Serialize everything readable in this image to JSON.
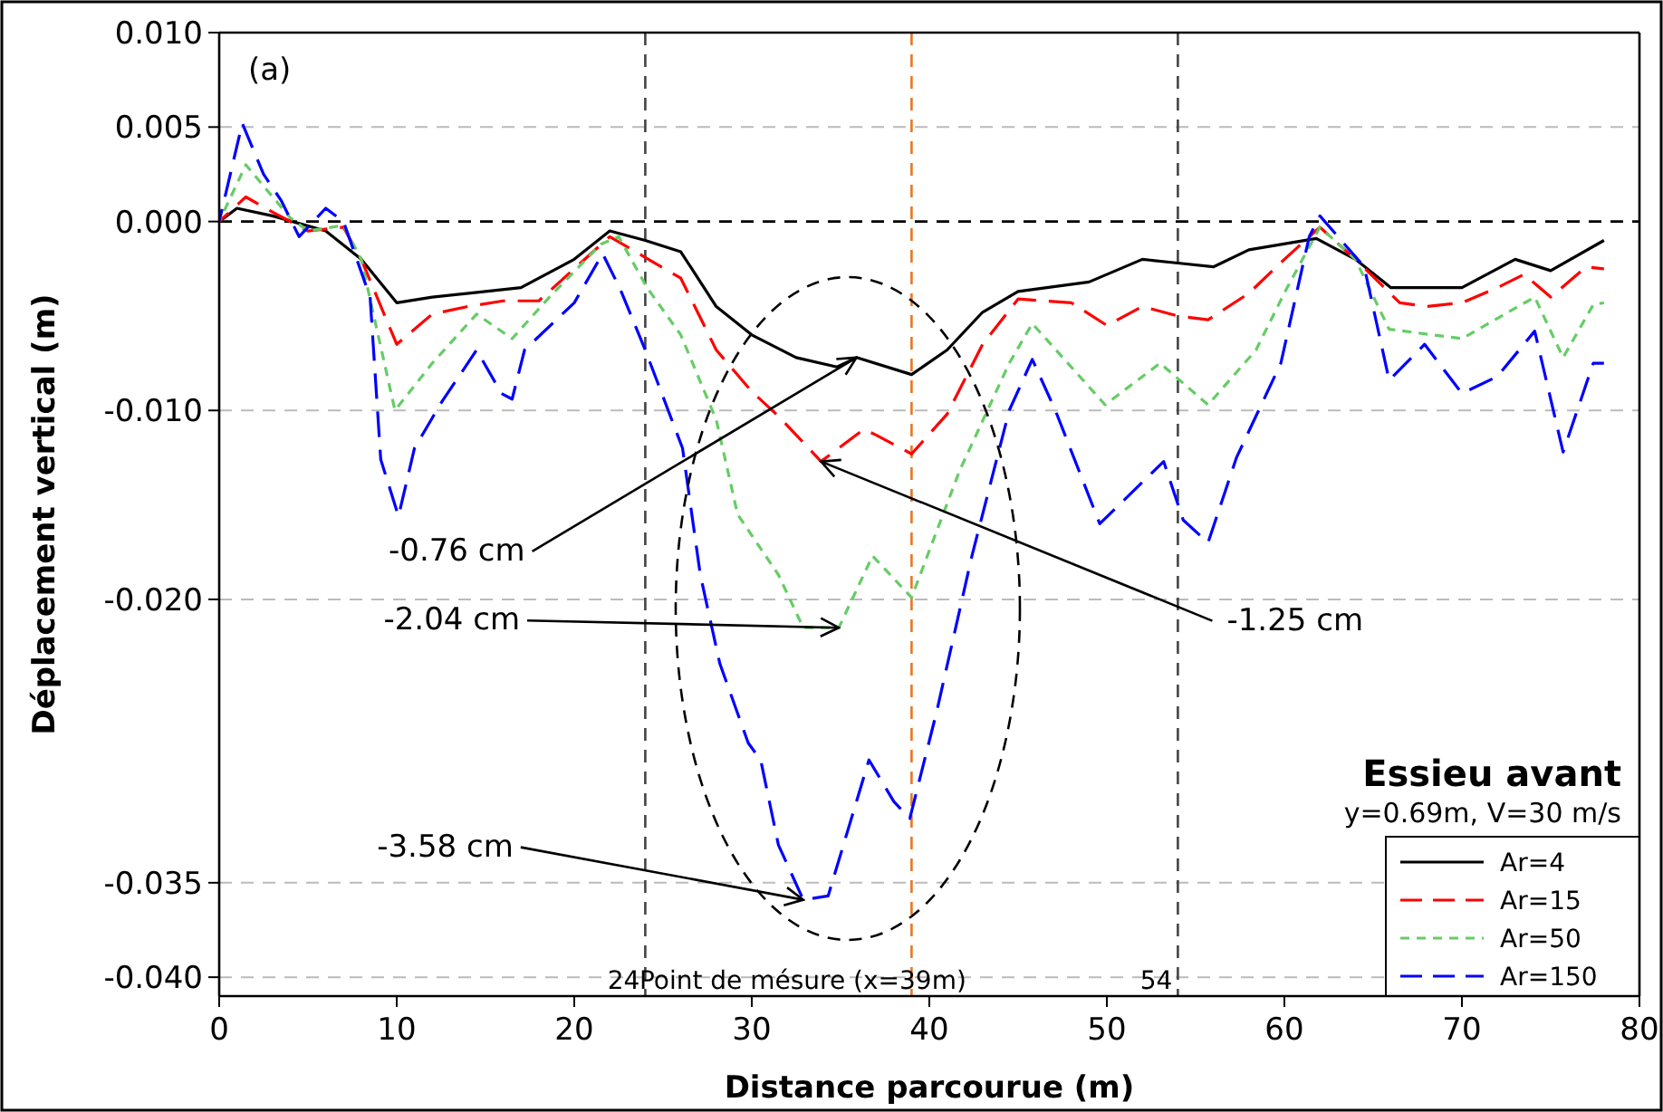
{
  "chart_data": {
    "type": "line",
    "title": "Essieu avant",
    "subtitle": "y=0.69m, V=30 m/s",
    "xlabel": "Distance parcourue (m)",
    "ylabel": "Déplacement vertical (m)",
    "xlim": [
      0,
      80
    ],
    "ylim": [
      -0.041,
      0.01
    ],
    "xticks": [
      0,
      10,
      20,
      30,
      40,
      50,
      60,
      70,
      80
    ],
    "yticks": [
      {
        "value": -0.04,
        "label": "-0.040"
      },
      {
        "value": -0.035,
        "label": "-0.035"
      },
      {
        "value": -0.02,
        "label": "-0.020"
      },
      {
        "value": -0.01,
        "label": "-0.010"
      },
      {
        "value": 0,
        "label": "0.000"
      },
      {
        "value": 0.005,
        "label": "0.005"
      },
      {
        "value": 0.01,
        "label": "0.010"
      }
    ],
    "grid": "y",
    "legend": "bottom right",
    "series": [
      {
        "name": "Ar=4",
        "color": "#000000",
        "line_style": "solid",
        "x": [
          0,
          1,
          3,
          6,
          8,
          10,
          12,
          15,
          17,
          20,
          22,
          24,
          26,
          28,
          30,
          32.5,
          34.8,
          35.9,
          39,
          41,
          43,
          45,
          49,
          52,
          54,
          56,
          58,
          61.8,
          64,
          66,
          70,
          73,
          75,
          78
        ],
        "values": [
          0,
          0.0007,
          0.0003,
          -0.0005,
          -0.002,
          -0.0043,
          -0.004,
          -0.0037,
          -0.0035,
          -0.002,
          -0.0005,
          -0.001,
          -0.0016,
          -0.0045,
          -0.006,
          -0.0072,
          -0.0077,
          -0.0072,
          -0.0081,
          -0.0068,
          -0.0048,
          -0.0037,
          -0.0032,
          -0.002,
          -0.0022,
          -0.0024,
          -0.0015,
          -0.0009,
          -0.002,
          -0.0035,
          -0.0035,
          -0.002,
          -0.0026,
          -0.001
        ]
      },
      {
        "name": "Ar=15",
        "color": "#ff0000",
        "line_style": "dashed",
        "x": [
          0,
          1.5,
          3,
          5,
          7,
          8,
          10,
          12,
          14,
          16,
          18,
          20,
          22,
          24,
          26,
          28,
          30,
          31.5,
          33.9,
          36.3,
          37,
          39,
          41,
          43,
          45,
          48,
          50,
          52,
          54,
          55.7,
          58,
          60,
          62,
          64,
          66.5,
          68,
          70,
          72,
          73.5,
          75,
          77,
          78
        ],
        "values": [
          0,
          0.0013,
          0.0005,
          -0.0005,
          -0.0003,
          -0.002,
          -0.0065,
          -0.0049,
          -0.0045,
          -0.0042,
          -0.0042,
          -0.0025,
          -0.0008,
          -0.0019,
          -0.003,
          -0.0068,
          -0.009,
          -0.0103,
          -0.0127,
          -0.011,
          -0.0113,
          -0.0123,
          -0.0102,
          -0.0065,
          -0.0041,
          -0.0043,
          -0.0055,
          -0.0045,
          -0.005,
          -0.0052,
          -0.0038,
          -0.002,
          -0.0003,
          -0.002,
          -0.0043,
          -0.0045,
          -0.0043,
          -0.0035,
          -0.0028,
          -0.004,
          -0.0024,
          -0.0025
        ]
      },
      {
        "name": "Ar=50",
        "color": "#66cc66",
        "line_style": "dotted",
        "x": [
          0,
          1.5,
          4,
          5,
          7,
          8,
          9.9,
          12,
          14.5,
          16.5,
          18.6,
          21.5,
          22.5,
          24.1,
          26,
          28,
          29.2,
          31.5,
          32.9,
          34.9,
          36.8,
          39,
          41.7,
          44.5,
          45.8,
          49.9,
          53,
          55.7,
          58.4,
          60.1,
          62,
          64,
          65.9,
          70,
          74.1,
          75.7,
          77.4,
          78
        ],
        "values": [
          0,
          0.003,
          0.0002,
          -0.0005,
          -0.0002,
          -0.002,
          -0.01,
          -0.0075,
          -0.0049,
          -0.0062,
          -0.004,
          -0.0012,
          -0.0008,
          -0.0035,
          -0.006,
          -0.0105,
          -0.0155,
          -0.0187,
          -0.0215,
          -0.0215,
          -0.0177,
          -0.0199,
          -0.0132,
          -0.0075,
          -0.0054,
          -0.0097,
          -0.0075,
          -0.0097,
          -0.0068,
          -0.0036,
          -0.0003,
          -0.002,
          -0.0057,
          -0.0062,
          -0.004,
          -0.0072,
          -0.0044,
          -0.0043
        ]
      },
      {
        "name": "Ar=150",
        "color": "#0000ff",
        "line_style": "dashed",
        "x": [
          0,
          1.3,
          2.5,
          3.5,
          4.5,
          6,
          7,
          8.5,
          9.1,
          10.1,
          11,
          12.5,
          14.5,
          15.9,
          16.5,
          17.2,
          20,
          21.6,
          22.6,
          24,
          26.1,
          27.1,
          28.2,
          29.8,
          30.5,
          31.5,
          32.9,
          34.3,
          36.6,
          38,
          38.9,
          40.4,
          42.4,
          44.5,
          45.8,
          47.1,
          49.6,
          53.2,
          54.3,
          55.7,
          57.3,
          59.8,
          61.4,
          62,
          64.5,
          65.9,
          67.9,
          70,
          72,
          74.1,
          75.7,
          77.4,
          78
        ],
        "values": [
          0,
          0.0052,
          0.0025,
          0.0011,
          -0.0008,
          0.0007,
          0,
          -0.004,
          -0.0126,
          -0.0156,
          -0.012,
          -0.0096,
          -0.0068,
          -0.0091,
          -0.0094,
          -0.0068,
          -0.0043,
          -0.0017,
          -0.0036,
          -0.0068,
          -0.012,
          -0.0187,
          -0.0234,
          -0.0276,
          -0.0285,
          -0.033,
          -0.0359,
          -0.0357,
          -0.0285,
          -0.0307,
          -0.0316,
          -0.026,
          -0.0177,
          -0.01,
          -0.0073,
          -0.01,
          -0.016,
          -0.0127,
          -0.0158,
          -0.017,
          -0.0125,
          -0.0075,
          -0.0008,
          0.0003,
          -0.0024,
          -0.0084,
          -0.0065,
          -0.0091,
          -0.0082,
          -0.0058,
          -0.0122,
          -0.0075,
          -0.0075
        ]
      }
    ],
    "ref_lines": [
      {
        "axis": "y",
        "value": 0,
        "color": "#000000",
        "line_style": "dashed"
      },
      {
        "axis": "x",
        "value": 24,
        "label": "24",
        "color": "#444444",
        "line_style": "dashed"
      },
      {
        "axis": "x",
        "value": 39,
        "label": "Point de mésure (x=39m)",
        "color": "#e87722",
        "line_style": "dashed"
      },
      {
        "axis": "x",
        "value": 54,
        "label": "54",
        "color": "#444444",
        "line_style": "dashed"
      }
    ],
    "annotations": [
      "(a)",
      {
        "text": "-0.76 cm",
        "x": 35.9,
        "y": -0.0072
      },
      {
        "text": "-2.04 cm",
        "x": 34.9,
        "y": -0.0215
      },
      {
        "text": "-1.25 cm",
        "x": 33.9,
        "y": -0.0127
      },
      {
        "text": "-3.58 cm",
        "x": 32.9,
        "y": -0.0359
      }
    ]
  }
}
